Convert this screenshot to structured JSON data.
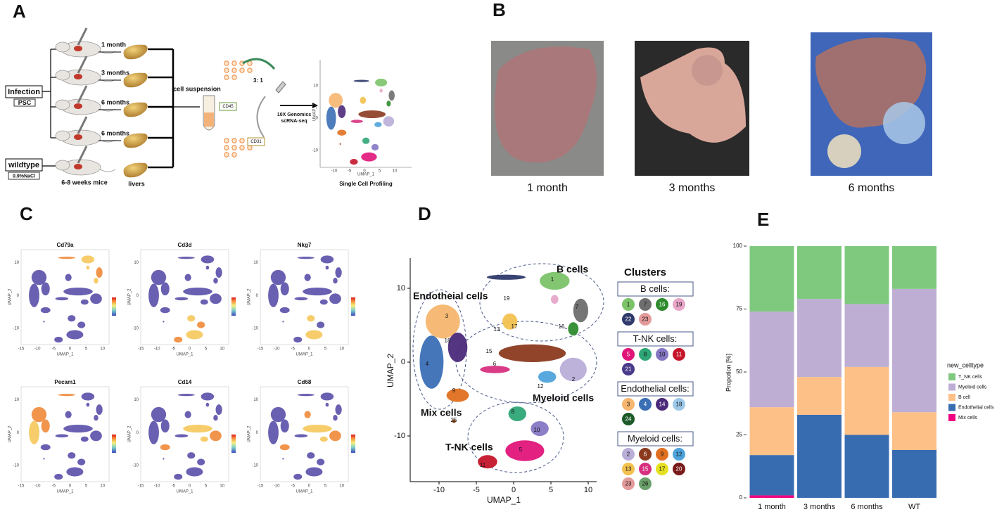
{
  "panels": {
    "a": "A",
    "b": "B",
    "c": "C",
    "d": "D",
    "e": "E"
  },
  "panel_a": {
    "infection": "Infection",
    "psc": "PSC",
    "wildtype": "wildtype",
    "nacl": "0.9%NaCl",
    "timepoints": [
      "1 month",
      "3 months",
      "6 months",
      "6 months"
    ],
    "mice": "6-8 weeks mice",
    "livers": "livers",
    "suspension": "cell suspension",
    "cd45": "CD45",
    "cd31": "CD31",
    "ratio": "3: 1",
    "platform": [
      "10X Genomics",
      "scRNA-seq"
    ],
    "profiling": "Single Cell Profiling",
    "x_label": "UMAP_1",
    "y_label": "UMAP_2",
    "xticks": [
      -10,
      -5,
      0,
      5,
      10
    ],
    "yticks": [
      -10,
      0,
      10
    ]
  },
  "panel_b": {
    "captions": [
      "1 month",
      "3 months",
      "6 months"
    ]
  },
  "panel_c": {
    "genes": [
      "Cd79a",
      "Cd3d",
      "Nkg7",
      "Pecam1",
      "Cd14",
      "Cd68"
    ],
    "x_label": "UMAP_1",
    "y_label": "UMAP_2",
    "xticks": [
      -15,
      -10,
      -5,
      0,
      5,
      10
    ],
    "yticks": [
      -10,
      0,
      10
    ]
  },
  "panel_d": {
    "x_label": "UMAP_1",
    "y_label": "UMAP_2",
    "xticks": [
      -10,
      -5,
      0,
      5,
      10
    ],
    "yticks": [
      -10,
      0,
      10
    ],
    "groups": [
      "B cells",
      "Endotheial cells",
      "Myeloid cells",
      "Mix cells",
      "T-NK cells"
    ],
    "cluster_labels": [
      "1",
      "7",
      "16",
      "19",
      "3",
      "18",
      "4",
      "13",
      "17",
      "15",
      "6",
      "2",
      "12",
      "9",
      "25",
      "8",
      "10",
      "5",
      "11"
    ],
    "legend": {
      "title": "Clusters",
      "groups": [
        {
          "name": "B cells:",
          "clusters": [
            {
              "label": "1",
              "color": "#7cc36a"
            },
            {
              "label": "7",
              "color": "#6e6e6e"
            },
            {
              "label": "16",
              "color": "#2e8b2e"
            },
            {
              "label": "19",
              "color": "#e8a6c8"
            },
            {
              "label": "22",
              "color": "#2f3a6b"
            },
            {
              "label": "23",
              "color": "#e39a9a"
            }
          ]
        },
        {
          "name": "T-NK cells:",
          "clusters": [
            {
              "label": "5",
              "color": "#e0157a"
            },
            {
              "label": "8",
              "color": "#2fa676"
            },
            {
              "label": "10",
              "color": "#8677c4"
            },
            {
              "label": "11",
              "color": "#c4152a"
            },
            {
              "label": "21",
              "color": "#4a3b8a"
            }
          ]
        },
        {
          "name": "Endothelial cells:",
          "clusters": [
            {
              "label": "3",
              "color": "#f6b66f"
            },
            {
              "label": "4",
              "color": "#3a6fb5"
            },
            {
              "label": "14",
              "color": "#4b2a7a"
            },
            {
              "label": "18",
              "color": "#9ec9e8"
            },
            {
              "label": "24",
              "color": "#1d5a2a"
            }
          ]
        },
        {
          "name": "Myeloid cells:",
          "clusters": [
            {
              "label": "2",
              "color": "#b9aed8"
            },
            {
              "label": "6",
              "color": "#8b3a1f"
            },
            {
              "label": "9",
              "color": "#e07020"
            },
            {
              "label": "12",
              "color": "#4fa3dc"
            },
            {
              "label": "13",
              "color": "#f2c14e"
            },
            {
              "label": "15",
              "color": "#d7307f"
            },
            {
              "label": "17",
              "color": "#e6e022"
            },
            {
              "label": "20",
              "color": "#7a1a1a"
            },
            {
              "label": "23",
              "color": "#e39a9a"
            },
            {
              "label": "26",
              "color": "#6aa06a"
            }
          ]
        }
      ]
    }
  },
  "chart_data": {
    "type": "stacked_bar",
    "y_label": "Propotion [%]",
    "legend_title": "new_celltype",
    "categories": [
      "1 month",
      "3 months",
      "6 months",
      "WT"
    ],
    "series": [
      {
        "name": "T_NK cells",
        "color": "#7fc97f",
        "values": [
          26,
          21,
          23,
          17
        ]
      },
      {
        "name": "Myeloid cells",
        "color": "#beaed4",
        "values": [
          38,
          31,
          25,
          49
        ]
      },
      {
        "name": "B cell",
        "color": "#fdc086",
        "values": [
          19,
          15,
          27,
          15
        ]
      },
      {
        "name": "Endothelial cells",
        "color": "#386cb0",
        "values": [
          16,
          33,
          25,
          19
        ]
      },
      {
        "name": "Mix cells",
        "color": "#f0027f",
        "values": [
          1,
          0,
          0,
          0
        ]
      }
    ],
    "ylim": [
      0,
      100
    ],
    "yticks": [
      0,
      25,
      50,
      75,
      100
    ]
  }
}
